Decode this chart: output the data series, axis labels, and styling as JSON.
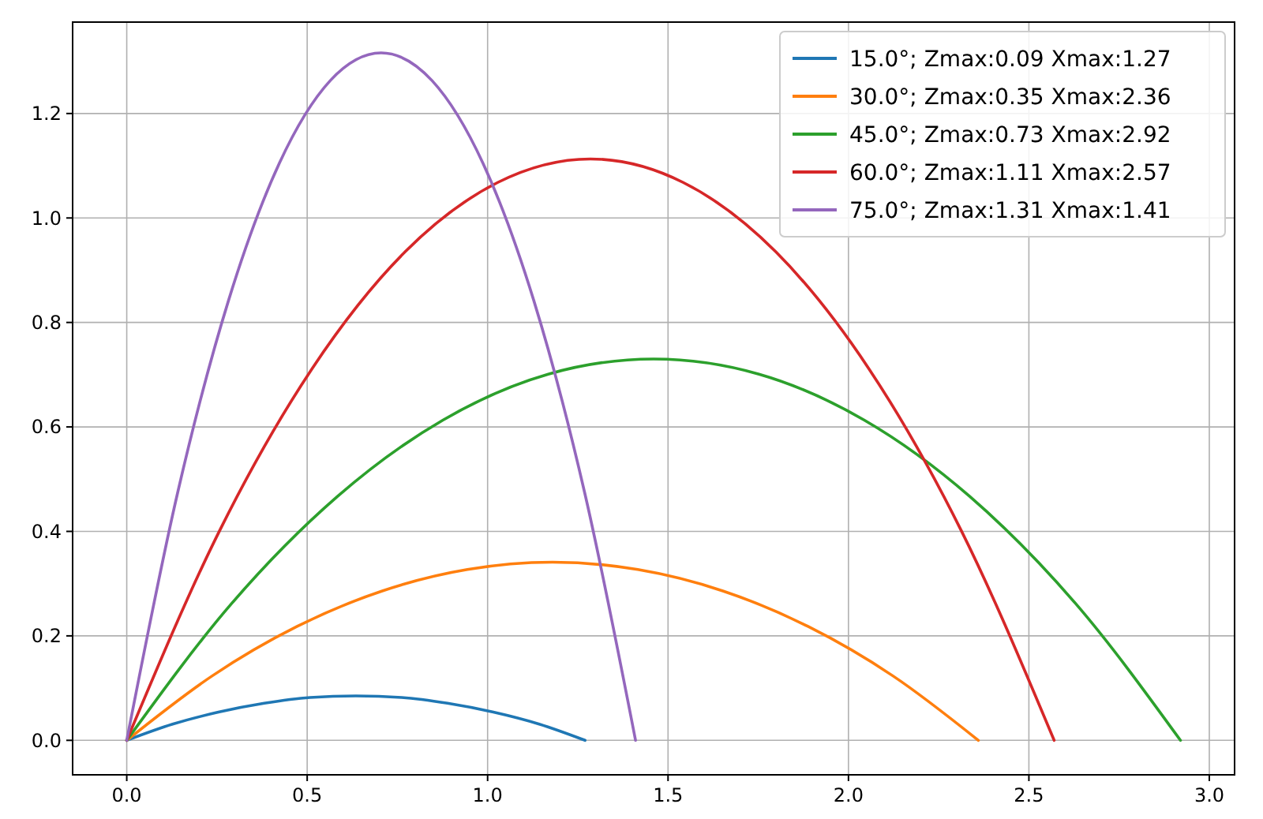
{
  "chart_data": {
    "type": "line",
    "xlim": [
      -0.15,
      3.07
    ],
    "ylim": [
      -0.066,
      1.375
    ],
    "xticks": [
      {
        "value": 0,
        "label": "0.0"
      },
      0.5,
      {
        "value": 1,
        "label": "1.0"
      },
      1.5,
      {
        "value": 2,
        "label": "2.0"
      },
      2.5,
      {
        "value": 3,
        "label": "3.0"
      }
    ],
    "yticks": [
      {
        "value": 0,
        "label": "0.0"
      },
      0.2,
      0.4,
      0.6,
      0.8,
      {
        "value": 1,
        "label": "1.0"
      },
      1.2
    ],
    "grid": true,
    "legend": "top right",
    "marker": "none",
    "line_style": "solid",
    "series": [
      {
        "name": "15.0°; Zmax:0.09 Xmax:1.27",
        "color": "#1f77b4",
        "x": [
          0,
          0.127,
          0.254,
          0.381,
          0.508,
          0.635,
          0.762,
          0.889,
          1.016,
          1.143,
          1.27
        ],
        "values": [
          0,
          0.031,
          0.054,
          0.071,
          0.082,
          0.085,
          0.082,
          0.071,
          0.054,
          0.031,
          0
        ]
      },
      {
        "name": "30.0°; Zmax:0.35 Xmax:2.36",
        "color": "#ff7f0e",
        "x": [
          0,
          0.236,
          0.472,
          0.708,
          0.944,
          1.18,
          1.416,
          1.652,
          1.888,
          2.124,
          2.36
        ],
        "values": [
          0,
          0.123,
          0.218,
          0.286,
          0.327,
          0.341,
          0.327,
          0.286,
          0.218,
          0.123,
          0
        ]
      },
      {
        "name": "45.0°; Zmax:0.73 Xmax:2.92",
        "color": "#2ca02c",
        "x": [
          0,
          0.292,
          0.584,
          0.876,
          1.168,
          1.46,
          1.752,
          2.044,
          2.336,
          2.628,
          2.92
        ],
        "values": [
          0,
          0.263,
          0.467,
          0.613,
          0.701,
          0.73,
          0.701,
          0.613,
          0.467,
          0.263,
          0
        ]
      },
      {
        "name": "60.0°; Zmax:1.11 Xmax:2.57",
        "color": "#d62728",
        "x": [
          0,
          0.257,
          0.514,
          0.771,
          1.028,
          1.285,
          1.542,
          1.799,
          2.056,
          2.313,
          2.57
        ],
        "values": [
          0,
          0.401,
          0.712,
          0.935,
          1.068,
          1.113,
          1.068,
          0.935,
          0.712,
          0.401,
          0
        ]
      },
      {
        "name": "75.0°; Zmax:1.31 Xmax:1.41",
        "color": "#9467bd",
        "x": [
          0,
          0.141,
          0.282,
          0.423,
          0.564,
          0.705,
          0.846,
          0.987,
          1.128,
          1.269,
          1.41
        ],
        "values": [
          0,
          0.474,
          0.842,
          1.105,
          1.263,
          1.316,
          1.263,
          1.105,
          0.842,
          0.474,
          0
        ]
      }
    ]
  }
}
